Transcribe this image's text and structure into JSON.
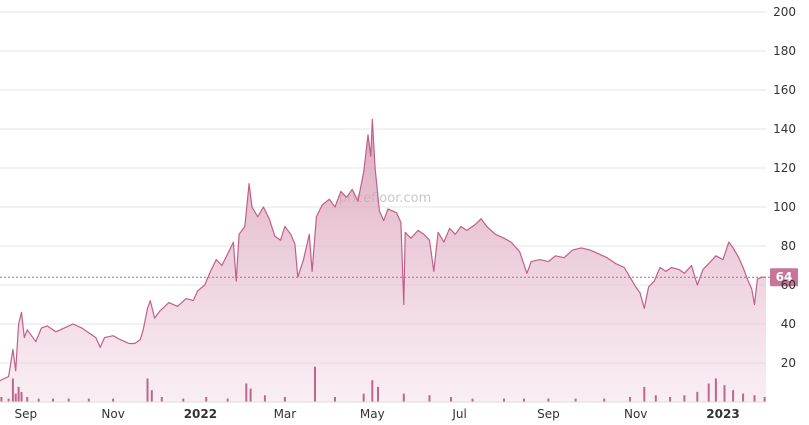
{
  "watermark": "pricefloor.com",
  "chart_data": {
    "type": "area",
    "title": "",
    "xlabel": "",
    "ylabel": "",
    "ylim": [
      0,
      200
    ],
    "y_ticks": [
      20,
      40,
      60,
      80,
      100,
      120,
      140,
      160,
      180,
      200
    ],
    "y_axis_position": "right",
    "grid": true,
    "x_ticks": [
      {
        "label": "Sep",
        "date": "2021-09-01",
        "bold": false
      },
      {
        "label": "Nov",
        "date": "2021-11-01",
        "bold": false
      },
      {
        "label": "2022",
        "date": "2022-01-01",
        "bold": true
      },
      {
        "label": "Mar",
        "date": "2022-03-01",
        "bold": false
      },
      {
        "label": "May",
        "date": "2022-05-01",
        "bold": false
      },
      {
        "label": "Jul",
        "date": "2022-07-01",
        "bold": false
      },
      {
        "label": "Sep",
        "date": "2022-09-01",
        "bold": false
      },
      {
        "label": "Nov",
        "date": "2022-11-01",
        "bold": false
      },
      {
        "label": "2023",
        "date": "2023-01-01",
        "bold": true
      }
    ],
    "current_value": 64,
    "colors": {
      "line": "#c0608a",
      "fill": "#d9a3bb",
      "volume": "#b0507a",
      "label_bg": "#c8759b",
      "grid": "#e6e6e6"
    },
    "series": [
      {
        "values": [
          [
            "2021-08-14",
            11
          ],
          [
            "2021-08-20",
            13
          ],
          [
            "2021-08-23",
            27
          ],
          [
            "2021-08-25",
            16
          ],
          [
            "2021-08-27",
            40
          ],
          [
            "2021-08-29",
            46
          ],
          [
            "2021-08-31",
            33
          ],
          [
            "2021-09-02",
            37
          ],
          [
            "2021-09-05",
            34
          ],
          [
            "2021-09-08",
            31
          ],
          [
            "2021-09-12",
            38
          ],
          [
            "2021-09-16",
            39
          ],
          [
            "2021-09-22",
            36
          ],
          [
            "2021-09-28",
            38
          ],
          [
            "2021-10-04",
            40
          ],
          [
            "2021-10-10",
            38
          ],
          [
            "2021-10-16",
            35
          ],
          [
            "2021-10-20",
            33
          ],
          [
            "2021-10-23",
            28
          ],
          [
            "2021-10-26",
            33
          ],
          [
            "2021-11-01",
            34
          ],
          [
            "2021-11-06",
            32
          ],
          [
            "2021-11-12",
            30
          ],
          [
            "2021-11-16",
            30
          ],
          [
            "2021-11-20",
            32
          ],
          [
            "2021-11-22",
            37
          ],
          [
            "2021-11-25",
            48
          ],
          [
            "2021-11-27",
            52
          ],
          [
            "2021-11-30",
            43
          ],
          [
            "2021-12-04",
            47
          ],
          [
            "2021-12-10",
            51
          ],
          [
            "2021-12-16",
            49
          ],
          [
            "2021-12-22",
            53
          ],
          [
            "2021-12-27",
            52
          ],
          [
            "2021-12-30",
            57
          ],
          [
            "2022-01-04",
            60
          ],
          [
            "2022-01-08",
            67
          ],
          [
            "2022-01-12",
            73
          ],
          [
            "2022-01-16",
            70
          ],
          [
            "2022-01-20",
            76
          ],
          [
            "2022-01-24",
            82
          ],
          [
            "2022-01-26",
            62
          ],
          [
            "2022-01-28",
            86
          ],
          [
            "2022-02-01",
            90
          ],
          [
            "2022-02-04",
            112
          ],
          [
            "2022-02-06",
            100
          ],
          [
            "2022-02-10",
            95
          ],
          [
            "2022-02-14",
            100
          ],
          [
            "2022-02-18",
            94
          ],
          [
            "2022-02-22",
            85
          ],
          [
            "2022-02-26",
            83
          ],
          [
            "2022-03-01",
            90
          ],
          [
            "2022-03-05",
            86
          ],
          [
            "2022-03-08",
            81
          ],
          [
            "2022-03-10",
            64
          ],
          [
            "2022-03-14",
            73
          ],
          [
            "2022-03-18",
            86
          ],
          [
            "2022-03-20",
            67
          ],
          [
            "2022-03-23",
            95
          ],
          [
            "2022-03-27",
            101
          ],
          [
            "2022-04-01",
            104
          ],
          [
            "2022-04-05",
            100
          ],
          [
            "2022-04-09",
            108
          ],
          [
            "2022-04-13",
            105
          ],
          [
            "2022-04-17",
            109
          ],
          [
            "2022-04-21",
            103
          ],
          [
            "2022-04-25",
            118
          ],
          [
            "2022-04-28",
            137
          ],
          [
            "2022-04-30",
            126
          ],
          [
            "2022-05-01",
            145
          ],
          [
            "2022-05-03",
            120
          ],
          [
            "2022-05-06",
            98
          ],
          [
            "2022-05-09",
            93
          ],
          [
            "2022-05-12",
            99
          ],
          [
            "2022-05-18",
            97
          ],
          [
            "2022-05-21",
            92
          ],
          [
            "2022-05-23",
            50
          ],
          [
            "2022-05-24",
            87
          ],
          [
            "2022-05-28",
            84
          ],
          [
            "2022-06-02",
            88
          ],
          [
            "2022-06-06",
            86
          ],
          [
            "2022-06-10",
            83
          ],
          [
            "2022-06-13",
            67
          ],
          [
            "2022-06-16",
            87
          ],
          [
            "2022-06-20",
            82
          ],
          [
            "2022-06-24",
            89
          ],
          [
            "2022-06-28",
            86
          ],
          [
            "2022-07-02",
            90
          ],
          [
            "2022-07-06",
            88
          ],
          [
            "2022-07-12",
            91
          ],
          [
            "2022-07-16",
            94
          ],
          [
            "2022-07-20",
            90
          ],
          [
            "2022-07-26",
            86
          ],
          [
            "2022-08-01",
            84
          ],
          [
            "2022-08-06",
            82
          ],
          [
            "2022-08-12",
            77
          ],
          [
            "2022-08-17",
            66
          ],
          [
            "2022-08-20",
            72
          ],
          [
            "2022-08-26",
            73
          ],
          [
            "2022-09-01",
            72
          ],
          [
            "2022-09-06",
            75
          ],
          [
            "2022-09-12",
            74
          ],
          [
            "2022-09-18",
            78
          ],
          [
            "2022-09-24",
            79
          ],
          [
            "2022-09-30",
            78
          ],
          [
            "2022-10-06",
            76
          ],
          [
            "2022-10-12",
            74
          ],
          [
            "2022-10-18",
            71
          ],
          [
            "2022-10-24",
            69
          ],
          [
            "2022-10-28",
            64
          ],
          [
            "2022-11-01",
            59
          ],
          [
            "2022-11-04",
            56
          ],
          [
            "2022-11-07",
            48
          ],
          [
            "2022-11-10",
            59
          ],
          [
            "2022-11-14",
            62
          ],
          [
            "2022-11-18",
            69
          ],
          [
            "2022-11-22",
            67
          ],
          [
            "2022-11-26",
            69
          ],
          [
            "2022-12-01",
            68
          ],
          [
            "2022-12-05",
            66
          ],
          [
            "2022-12-10",
            70
          ],
          [
            "2022-12-14",
            60
          ],
          [
            "2022-12-18",
            68
          ],
          [
            "2022-12-22",
            71
          ],
          [
            "2022-12-27",
            75
          ],
          [
            "2023-01-01",
            73
          ],
          [
            "2023-01-05",
            82
          ],
          [
            "2023-01-08",
            79
          ],
          [
            "2023-01-12",
            74
          ],
          [
            "2023-01-15",
            69
          ],
          [
            "2023-01-18",
            63
          ],
          [
            "2023-01-21",
            58
          ],
          [
            "2023-01-23",
            50
          ],
          [
            "2023-01-25",
            63
          ],
          [
            "2023-01-28",
            64
          ],
          [
            "2023-01-31",
            64
          ]
        ]
      }
    ],
    "volume": [
      [
        "2021-08-15",
        3
      ],
      [
        "2021-08-20",
        2
      ],
      [
        "2021-08-23",
        14
      ],
      [
        "2021-08-25",
        5
      ],
      [
        "2021-08-27",
        9
      ],
      [
        "2021-08-29",
        6
      ],
      [
        "2021-09-02",
        3
      ],
      [
        "2021-09-10",
        2
      ],
      [
        "2021-09-20",
        2
      ],
      [
        "2021-10-01",
        2
      ],
      [
        "2021-10-15",
        2
      ],
      [
        "2021-11-01",
        2
      ],
      [
        "2021-11-25",
        14
      ],
      [
        "2021-11-28",
        7
      ],
      [
        "2021-12-05",
        3
      ],
      [
        "2021-12-20",
        2
      ],
      [
        "2022-01-05",
        3
      ],
      [
        "2022-01-20",
        2
      ],
      [
        "2022-02-02",
        11
      ],
      [
        "2022-02-05",
        8
      ],
      [
        "2022-02-15",
        4
      ],
      [
        "2022-03-01",
        3
      ],
      [
        "2022-03-22",
        21
      ],
      [
        "2022-04-05",
        3
      ],
      [
        "2022-04-25",
        5
      ],
      [
        "2022-05-01",
        13
      ],
      [
        "2022-05-05",
        9
      ],
      [
        "2022-05-23",
        5
      ],
      [
        "2022-06-10",
        4
      ],
      [
        "2022-06-25",
        3
      ],
      [
        "2022-07-10",
        2
      ],
      [
        "2022-08-01",
        2
      ],
      [
        "2022-08-15",
        2
      ],
      [
        "2022-09-01",
        2
      ],
      [
        "2022-09-20",
        2
      ],
      [
        "2022-10-10",
        2
      ],
      [
        "2022-10-28",
        3
      ],
      [
        "2022-11-07",
        9
      ],
      [
        "2022-11-15",
        4
      ],
      [
        "2022-11-25",
        3
      ],
      [
        "2022-12-05",
        4
      ],
      [
        "2022-12-14",
        6
      ],
      [
        "2022-12-22",
        11
      ],
      [
        "2022-12-27",
        14
      ],
      [
        "2023-01-02",
        10
      ],
      [
        "2023-01-08",
        7
      ],
      [
        "2023-01-15",
        5
      ],
      [
        "2023-01-23",
        4
      ],
      [
        "2023-01-30",
        3
      ]
    ]
  }
}
